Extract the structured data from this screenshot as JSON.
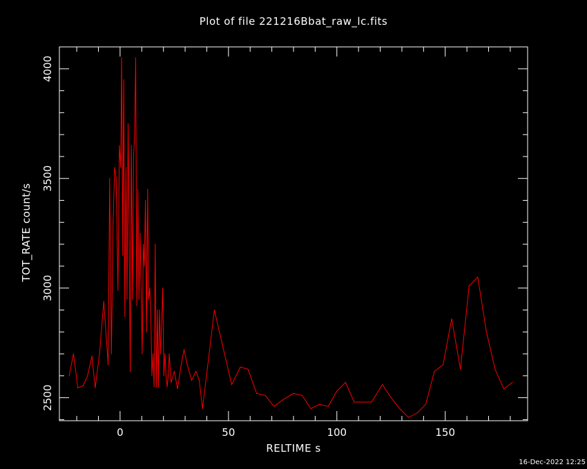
{
  "chart_data": {
    "type": "line",
    "title": "Plot of file 221216Bbat_raw_lc.fits",
    "xlabel": "RELTIME  s",
    "ylabel": "TOT_RATE  count/s",
    "xlim": [
      -28,
      188
    ],
    "ylim": [
      2395,
      4100
    ],
    "x_ticks": [
      0,
      50,
      100,
      150
    ],
    "y_ticks": [
      2500,
      3000,
      3500,
      4000
    ],
    "grid": false,
    "line_color": "#ff0000",
    "axis_color": "#ffffff",
    "background": "#000000",
    "x": [
      -23.5,
      -21.5,
      -19.5,
      -17,
      -15,
      -13,
      -11.5,
      -9.5,
      -7.5,
      -5.5,
      -4.8,
      -4,
      -3.2,
      -2.5,
      -1.8,
      -1,
      -0.3,
      0.3,
      0.7,
      1.2,
      1.7,
      2.2,
      2.7,
      3.2,
      3.7,
      4.2,
      4.7,
      5.2,
      5.7,
      6.2,
      6.7,
      7.2,
      7.7,
      8.2,
      8.7,
      9.2,
      9.7,
      10.2,
      10.7,
      11.2,
      11.7,
      12.2,
      12.7,
      13.2,
      13.7,
      14.2,
      14.7,
      15.2,
      15.7,
      16.2,
      16.7,
      17.2,
      17.7,
      18.2,
      18.7,
      19.2,
      19.7,
      20.2,
      20.7,
      21.2,
      21.7,
      22.2,
      22.7,
      23.5,
      25,
      26.5,
      28,
      29.5,
      31,
      33,
      35,
      36.5,
      38,
      40,
      43.5,
      47,
      51.5,
      55.5,
      59,
      63,
      67,
      71,
      75,
      80,
      84,
      88,
      92,
      96,
      100,
      104,
      108,
      112,
      116,
      121,
      125,
      129,
      133,
      137,
      141,
      145,
      149,
      153,
      157,
      161,
      165,
      169,
      173,
      177,
      181
    ],
    "y": [
      2600,
      2700,
      2545,
      2555,
      2600,
      2690,
      2545,
      2700,
      2940,
      2650,
      3500,
      2700,
      3300,
      3550,
      3500,
      2990,
      3650,
      3550,
      4050,
      3150,
      3950,
      2870,
      3550,
      2950,
      3750,
      3200,
      2620,
      3650,
      2950,
      3600,
      3700,
      4050,
      2920,
      3450,
      2950,
      3250,
      3000,
      2700,
      3200,
      3100,
      3400,
      2800,
      3450,
      2950,
      3000,
      2850,
      2600,
      2700,
      2550,
      3200,
      2550,
      2900,
      2550,
      2900,
      2700,
      2850,
      3000,
      2600,
      2700,
      2600,
      2550,
      2600,
      2700,
      2570,
      2620,
      2540,
      2640,
      2720,
      2650,
      2580,
      2620,
      2580,
      2450,
      2610,
      2900,
      2750,
      2560,
      2640,
      2630,
      2520,
      2510,
      2460,
      2490,
      2520,
      2510,
      2450,
      2470,
      2460,
      2530,
      2570,
      2480,
      2480,
      2480,
      2560,
      2500,
      2450,
      2410,
      2430,
      2470,
      2620,
      2650,
      2860,
      2630,
      3010,
      3050,
      2800,
      2630,
      2540,
      2570
    ]
  },
  "timestamp": "16-Dec-2022 12:25"
}
